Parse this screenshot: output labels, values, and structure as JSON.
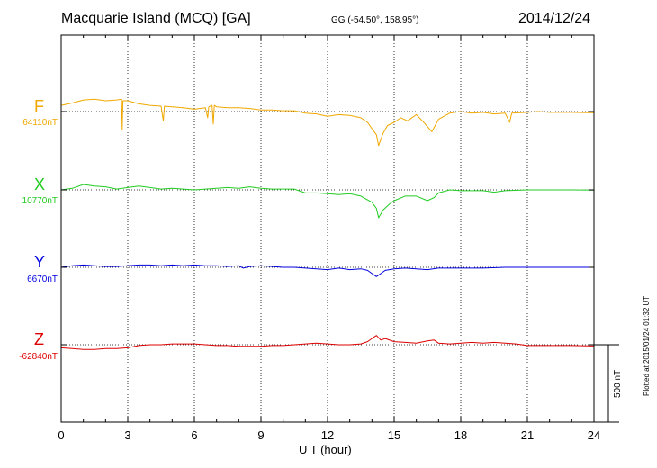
{
  "header": {
    "title": "Macquarie Island (MCQ)  [GA]",
    "coords": "GG (-54.50°, 158.95°)",
    "date": "2014/12/24"
  },
  "scale_label": "500 nT",
  "plotted_note": "Plotted at 2015/01/24 01:32 UT",
  "chart_data": {
    "type": "line",
    "xlabel": "U T (hour)",
    "xlim": [
      0,
      24
    ],
    "xticks": [
      "0",
      "3",
      "6",
      "9",
      "12",
      "15",
      "18",
      "21",
      "24"
    ],
    "grid": true,
    "scale_bar_nT": 500,
    "series": [
      {
        "name": "F",
        "baseline": "64110nT",
        "color": "#f0a800",
        "points": [
          [
            0,
            40
          ],
          [
            0.5,
            55
          ],
          [
            1,
            75
          ],
          [
            1.5,
            80
          ],
          [
            2,
            70
          ],
          [
            2.5,
            75
          ],
          [
            2.72,
            80
          ],
          [
            2.75,
            -120
          ],
          [
            2.78,
            70
          ],
          [
            3,
            70
          ],
          [
            3.5,
            50
          ],
          [
            4,
            40
          ],
          [
            4.5,
            35
          ],
          [
            4.6,
            -60
          ],
          [
            4.65,
            35
          ],
          [
            5,
            30
          ],
          [
            5.5,
            25
          ],
          [
            6,
            15
          ],
          [
            6.5,
            25
          ],
          [
            6.6,
            -40
          ],
          [
            6.65,
            30
          ],
          [
            6.8,
            40
          ],
          [
            6.85,
            -80
          ],
          [
            6.9,
            40
          ],
          [
            7,
            30
          ],
          [
            7.5,
            25
          ],
          [
            8,
            25
          ],
          [
            8.5,
            20
          ],
          [
            9,
            10
          ],
          [
            9.5,
            10
          ],
          [
            10,
            5
          ],
          [
            10.5,
            5
          ],
          [
            11,
            -10
          ],
          [
            11.5,
            -15
          ],
          [
            12,
            -30
          ],
          [
            12.5,
            -20
          ],
          [
            13,
            -25
          ],
          [
            13.5,
            -40
          ],
          [
            13.8,
            -70
          ],
          [
            14,
            -110
          ],
          [
            14.2,
            -150
          ],
          [
            14.3,
            -220
          ],
          [
            14.5,
            -140
          ],
          [
            14.7,
            -90
          ],
          [
            15,
            -70
          ],
          [
            15.3,
            -40
          ],
          [
            15.6,
            -60
          ],
          [
            16,
            -20
          ],
          [
            16.4,
            -80
          ],
          [
            16.7,
            -130
          ],
          [
            17,
            -50
          ],
          [
            17.5,
            -10
          ],
          [
            18,
            0
          ],
          [
            18.5,
            -10
          ],
          [
            19,
            -5
          ],
          [
            19.5,
            -15
          ],
          [
            20,
            -10
          ],
          [
            20.2,
            -70
          ],
          [
            20.3,
            -10
          ],
          [
            21,
            -5
          ],
          [
            21.5,
            0
          ],
          [
            22,
            -5
          ],
          [
            23,
            -5
          ],
          [
            24,
            -8
          ]
        ]
      },
      {
        "name": "X",
        "baseline": "10770nT",
        "color": "#22cc22",
        "points": [
          [
            0,
            0
          ],
          [
            0.5,
            10
          ],
          [
            1,
            35
          ],
          [
            1.5,
            25
          ],
          [
            2,
            20
          ],
          [
            2.5,
            5
          ],
          [
            3,
            15
          ],
          [
            3.5,
            25
          ],
          [
            4,
            15
          ],
          [
            4.5,
            5
          ],
          [
            5,
            10
          ],
          [
            5.5,
            5
          ],
          [
            6,
            0
          ],
          [
            6.5,
            5
          ],
          [
            7,
            10
          ],
          [
            7.5,
            15
          ],
          [
            8,
            10
          ],
          [
            8.5,
            20
          ],
          [
            9,
            10
          ],
          [
            9.5,
            5
          ],
          [
            10,
            5
          ],
          [
            10.5,
            5
          ],
          [
            11,
            -20
          ],
          [
            11.5,
            -20
          ],
          [
            12,
            -25
          ],
          [
            12.5,
            -30
          ],
          [
            13,
            -25
          ],
          [
            13.5,
            -40
          ],
          [
            14,
            -80
          ],
          [
            14.2,
            -120
          ],
          [
            14.3,
            -180
          ],
          [
            14.5,
            -130
          ],
          [
            14.8,
            -90
          ],
          [
            15,
            -70
          ],
          [
            15.5,
            -40
          ],
          [
            16,
            -40
          ],
          [
            16.5,
            -70
          ],
          [
            16.8,
            -50
          ],
          [
            17,
            -20
          ],
          [
            17.5,
            0
          ],
          [
            18,
            -5
          ],
          [
            18.5,
            -5
          ],
          [
            19,
            -5
          ],
          [
            19.5,
            -15
          ],
          [
            20,
            -5
          ],
          [
            21,
            0
          ],
          [
            22,
            0
          ],
          [
            23,
            0
          ],
          [
            24,
            -2
          ]
        ]
      },
      {
        "name": "Y",
        "baseline": "6670nT",
        "color": "#0000dd",
        "points": [
          [
            0,
            0
          ],
          [
            0.5,
            10
          ],
          [
            1,
            15
          ],
          [
            1.5,
            10
          ],
          [
            2,
            5
          ],
          [
            2.5,
            5
          ],
          [
            3,
            10
          ],
          [
            3.5,
            15
          ],
          [
            4,
            15
          ],
          [
            4.5,
            10
          ],
          [
            5,
            15
          ],
          [
            5.5,
            10
          ],
          [
            6,
            15
          ],
          [
            6.5,
            10
          ],
          [
            7,
            10
          ],
          [
            7.5,
            5
          ],
          [
            8,
            10
          ],
          [
            8.2,
            -5
          ],
          [
            8.5,
            5
          ],
          [
            9,
            10
          ],
          [
            9.5,
            5
          ],
          [
            10,
            0
          ],
          [
            10.5,
            0
          ],
          [
            11,
            -5
          ],
          [
            11.5,
            -10
          ],
          [
            12,
            -15
          ],
          [
            12.5,
            -5
          ],
          [
            13,
            -15
          ],
          [
            13.5,
            -10
          ],
          [
            13.8,
            -20
          ],
          [
            14,
            -40
          ],
          [
            14.2,
            -60
          ],
          [
            14.4,
            -40
          ],
          [
            14.6,
            -20
          ],
          [
            15,
            -10
          ],
          [
            15.5,
            -5
          ],
          [
            16,
            -10
          ],
          [
            16.5,
            -15
          ],
          [
            17,
            -5
          ],
          [
            17.5,
            -5
          ],
          [
            18,
            -5
          ],
          [
            19,
            -5
          ],
          [
            20,
            0
          ],
          [
            21,
            0
          ],
          [
            22,
            0
          ],
          [
            23,
            0
          ],
          [
            24,
            0
          ]
        ]
      },
      {
        "name": "Z",
        "baseline": "-62840nT",
        "color": "#dd0000",
        "points": [
          [
            0,
            -20
          ],
          [
            0.5,
            -25
          ],
          [
            1,
            -30
          ],
          [
            1.5,
            -30
          ],
          [
            2,
            -25
          ],
          [
            2.5,
            -25
          ],
          [
            3,
            -20
          ],
          [
            3.5,
            -5
          ],
          [
            4,
            0
          ],
          [
            4.5,
            0
          ],
          [
            5,
            5
          ],
          [
            5.5,
            5
          ],
          [
            6,
            5
          ],
          [
            6.5,
            0
          ],
          [
            7,
            -5
          ],
          [
            7.5,
            -5
          ],
          [
            8,
            -10
          ],
          [
            8.5,
            -10
          ],
          [
            9,
            -10
          ],
          [
            9.5,
            -5
          ],
          [
            10,
            -5
          ],
          [
            10.5,
            0
          ],
          [
            11,
            5
          ],
          [
            11.5,
            10
          ],
          [
            12,
            5
          ],
          [
            12.5,
            0
          ],
          [
            13,
            0
          ],
          [
            13.5,
            5
          ],
          [
            13.8,
            20
          ],
          [
            14,
            40
          ],
          [
            14.2,
            60
          ],
          [
            14.4,
            30
          ],
          [
            14.6,
            40
          ],
          [
            15,
            20
          ],
          [
            15.5,
            15
          ],
          [
            16,
            10
          ],
          [
            16.5,
            25
          ],
          [
            16.8,
            30
          ],
          [
            17,
            10
          ],
          [
            17.5,
            5
          ],
          [
            18,
            10
          ],
          [
            18.5,
            15
          ],
          [
            19,
            10
          ],
          [
            19.5,
            15
          ],
          [
            20,
            10
          ],
          [
            20.5,
            5
          ],
          [
            21,
            -5
          ],
          [
            21.5,
            -5
          ],
          [
            22,
            -5
          ],
          [
            22.5,
            -5
          ],
          [
            23,
            -5
          ],
          [
            24,
            -8
          ]
        ]
      }
    ]
  }
}
